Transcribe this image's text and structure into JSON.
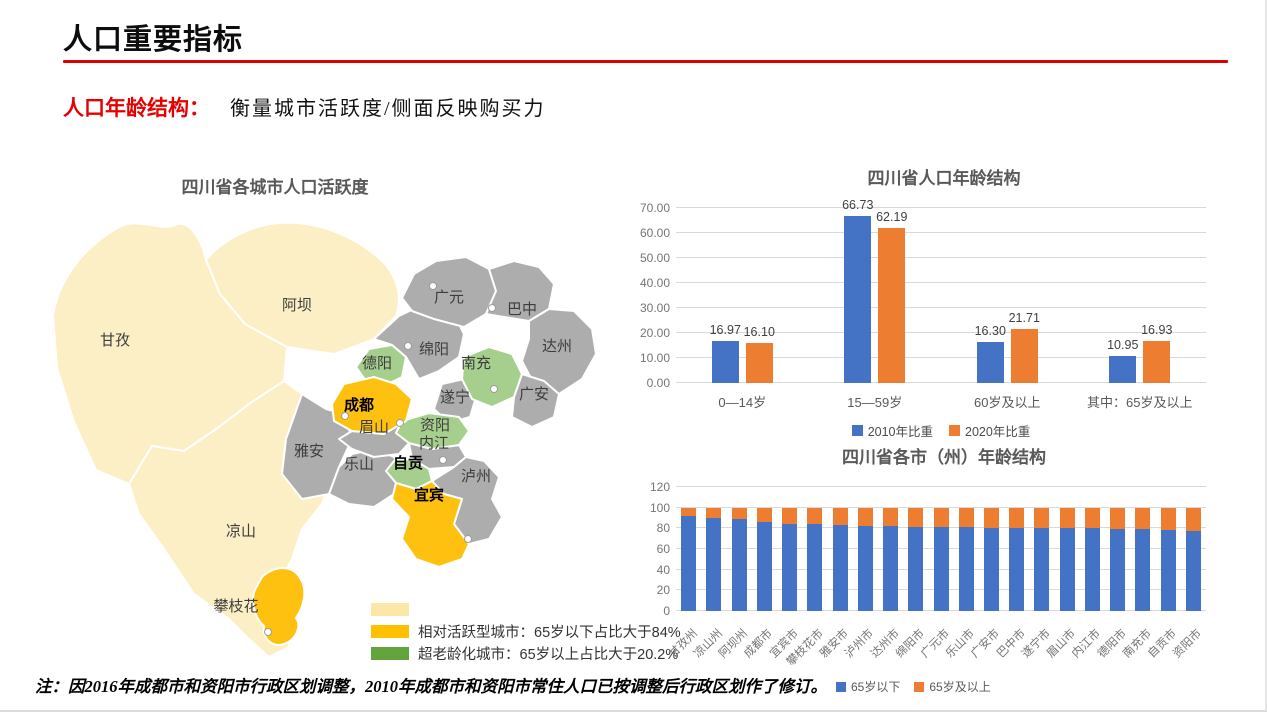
{
  "slide": {
    "title": "人口重要指标",
    "subtitle_label": "人口年龄结构：",
    "subtitle_text": "衡量城市活跃度/侧面反映购买力",
    "footnote": "注：因2016年成都市和资阳市行政区划调整，2010年成都市和资阳市常住人口已按调整后行政区划作了修订。",
    "accent_red": "#dd0000",
    "red_text": "#e60000"
  },
  "map": {
    "title": "四川省各城市人口活跃度",
    "colors": {
      "pale": "#FCEFC5",
      "gold": "#FEC110",
      "green": "#A6CF8D",
      "gray": "#ADADAD"
    },
    "legend": [
      {
        "color": "#FBE7A8",
        "label": ""
      },
      {
        "color": "#FFC000",
        "label": "相对活跃型城市：65岁以下占比大于84%"
      },
      {
        "color": "#64A43D",
        "label": "超老龄化城市：65岁以上占比大于20.2%"
      }
    ],
    "regions": [
      {
        "id": "ganzi",
        "name": "甘孜",
        "category": "pale",
        "bold": false
      },
      {
        "id": "aba",
        "name": "阿坝",
        "category": "pale",
        "bold": false
      },
      {
        "id": "liangshan",
        "name": "凉山",
        "category": "pale",
        "bold": false
      },
      {
        "id": "yaan",
        "name": "雅安",
        "category": "gray",
        "bold": false
      },
      {
        "id": "leshan",
        "name": "乐山",
        "category": "gray",
        "bold": false
      },
      {
        "id": "mianyang",
        "name": "绵阳",
        "category": "gray",
        "bold": false
      },
      {
        "id": "guangyuan",
        "name": "广元",
        "category": "gray",
        "bold": false
      },
      {
        "id": "bazhong",
        "name": "巴中",
        "category": "gray",
        "bold": false
      },
      {
        "id": "dazhou",
        "name": "达州",
        "category": "gray",
        "bold": false
      },
      {
        "id": "suining",
        "name": "遂宁",
        "category": "gray",
        "bold": false
      },
      {
        "id": "guangan",
        "name": "广安",
        "category": "gray",
        "bold": false
      },
      {
        "id": "meishan",
        "name": "眉山",
        "category": "gray",
        "bold": false
      },
      {
        "id": "neijiang",
        "name": "内江",
        "category": "gray",
        "bold": false
      },
      {
        "id": "luzhou",
        "name": "泸州",
        "category": "gray",
        "bold": false
      },
      {
        "id": "deyang",
        "name": "德阳",
        "category": "green",
        "bold": false
      },
      {
        "id": "nanchong",
        "name": "南充",
        "category": "green",
        "bold": false
      },
      {
        "id": "ziyang",
        "name": "资阳",
        "category": "green",
        "bold": false
      },
      {
        "id": "zigong",
        "name": "自贡",
        "category": "green",
        "bold": true
      },
      {
        "id": "chengdu",
        "name": "成都",
        "category": "gold",
        "bold": true
      },
      {
        "id": "yibin",
        "name": "宜宾",
        "category": "gold",
        "bold": true
      },
      {
        "id": "panzhihua",
        "name": "攀枝花",
        "category": "gold",
        "bold": false
      }
    ]
  },
  "chart_data": [
    {
      "type": "bar",
      "stacked": false,
      "title": "四川省人口年龄结构",
      "categories": [
        "0—14岁",
        "15—59岁",
        "60岁及以上",
        "其中：65岁及以上"
      ],
      "series": [
        {
          "name": "2010年比重",
          "color": "#4472C4",
          "values": [
            16.97,
            66.73,
            16.3,
            10.95
          ]
        },
        {
          "name": "2020年比重",
          "color": "#ED7D31",
          "values": [
            16.1,
            62.19,
            21.71,
            16.93
          ]
        }
      ],
      "ylim": [
        0,
        70
      ],
      "ytick_step": 10,
      "ytick_decimals": 2,
      "grid": true,
      "legend_position": "bottom",
      "data_labels": true
    },
    {
      "type": "bar",
      "stacked": true,
      "title": "四川省各市（州）年龄结构",
      "categories": [
        "甘孜州",
        "凉山州",
        "阿坝州",
        "成都市",
        "宜宾市",
        "攀枝花市",
        "雅安市",
        "泸州市",
        "达州市",
        "绵阳市",
        "广元市",
        "乐山市",
        "广安市",
        "巴中市",
        "遂宁市",
        "眉山市",
        "内江市",
        "德阳市",
        "南充市",
        "自贡市",
        "资阳市"
      ],
      "series": [
        {
          "name": "65岁以下",
          "color": "#4472C4",
          "values": [
            91.6,
            90.1,
            89.0,
            86.2,
            84.3,
            84.1,
            83.0,
            82.4,
            82.2,
            81.7,
            81.3,
            80.9,
            80.5,
            80.2,
            80.0,
            79.9,
            79.9,
            79.1,
            78.9,
            78.4,
            77.6
          ]
        },
        {
          "name": "65岁及以上",
          "color": "#ED7D31",
          "values": [
            8.4,
            9.9,
            11.0,
            13.8,
            15.7,
            15.9,
            17.0,
            17.6,
            17.8,
            18.3,
            18.7,
            19.1,
            19.5,
            19.8,
            20.0,
            20.1,
            20.1,
            20.9,
            21.1,
            21.6,
            22.4
          ]
        }
      ],
      "ylim": [
        0,
        120
      ],
      "ytick_step": 20,
      "ytick_decimals": 0,
      "grid": true,
      "legend_position": "bottom-right",
      "data_labels": false
    }
  ]
}
